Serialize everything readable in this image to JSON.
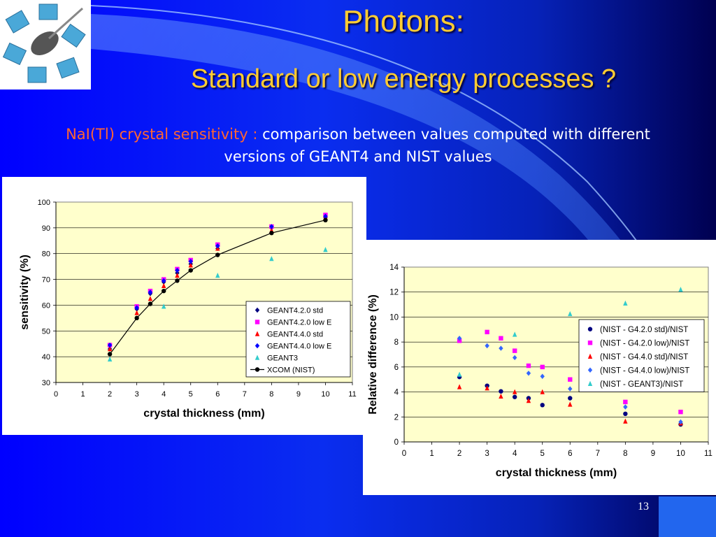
{
  "slide": {
    "title_line1": "Photons:",
    "title_line2": "Standard or low energy processes ?",
    "subtitle_highlight": "NaI(Tl) crystal sensitivity :",
    "subtitle_rest": " comparison between values computed with different",
    "subtitle_line2": "versions of GEANT4 and NIST values",
    "page_number": "13"
  },
  "chart_data": [
    {
      "type": "scatter",
      "ylabel": "sensitivity (%)",
      "xlabel": "crystal thickness (mm)",
      "xlim": [
        0,
        11
      ],
      "ylim": [
        30,
        100
      ],
      "xticks": [
        0,
        1,
        2,
        3,
        4,
        5,
        6,
        7,
        8,
        9,
        10,
        11
      ],
      "yticks": [
        30,
        40,
        50,
        60,
        70,
        80,
        90,
        100
      ],
      "grid": true,
      "legend_position": "right",
      "series": [
        {
          "name": "GEANT4.2.0 std",
          "marker": "diamond",
          "color": "#000080",
          "x": [
            2,
            3,
            3.5,
            4,
            4.5,
            5,
            6,
            8,
            10
          ],
          "y": [
            43,
            58.5,
            64.5,
            69,
            72.5,
            76,
            82,
            90,
            94
          ]
        },
        {
          "name": "GEANT4.2.0 low E",
          "marker": "square",
          "color": "#ff00ff",
          "x": [
            2,
            3,
            3.5,
            4,
            4.5,
            5,
            6,
            8,
            10
          ],
          "y": [
            44.5,
            59.5,
            65.5,
            70,
            74,
            77.5,
            83.5,
            90.5,
            95
          ]
        },
        {
          "name": "GEANT4.4.0 std",
          "marker": "triangle",
          "color": "#ff0000",
          "x": [
            2,
            3,
            3.5,
            4,
            4.5,
            5,
            6,
            8,
            10
          ],
          "y": [
            43,
            57,
            62.5,
            67.5,
            71.5,
            75.5,
            82,
            89,
            94
          ]
        },
        {
          "name": "GEANT4.4.0 low E",
          "marker": "diamond",
          "color": "#0000ff",
          "x": [
            2,
            3,
            3.5,
            4,
            4.5,
            5,
            6,
            8,
            10
          ],
          "y": [
            44.5,
            59,
            65,
            69.5,
            73.5,
            77,
            83,
            90.5,
            94.5
          ]
        },
        {
          "name": "GEANT3",
          "marker": "triangle",
          "color": "#33cccc",
          "x": [
            2,
            4,
            6,
            8,
            10
          ],
          "y": [
            39,
            59.5,
            71.5,
            78,
            81.5
          ]
        },
        {
          "name": "XCOM (NIST)",
          "marker": "circle",
          "color": "#000000",
          "line": true,
          "x": [
            2,
            3,
            3.5,
            4,
            4.5,
            5,
            6,
            8,
            10
          ],
          "y": [
            41,
            55,
            60.5,
            65.5,
            69.5,
            73.5,
            79.5,
            88,
            93
          ]
        }
      ]
    },
    {
      "type": "scatter",
      "ylabel": "Relative difference (%)",
      "xlabel": "crystal thickness (mm)",
      "xlim": [
        0,
        11
      ],
      "ylim": [
        0,
        14
      ],
      "xticks": [
        0,
        1,
        2,
        3,
        4,
        5,
        6,
        7,
        8,
        9,
        10,
        11
      ],
      "yticks": [
        0,
        2,
        4,
        6,
        8,
        10,
        12,
        14
      ],
      "grid": true,
      "legend_position": "right",
      "series": [
        {
          "name": "(NIST - G4.2.0 std)/NIST",
          "marker": "circle",
          "color": "#000080",
          "x": [
            2,
            3,
            3.5,
            4,
            4.5,
            5,
            6,
            8,
            10
          ],
          "y": [
            5.2,
            4.5,
            4.05,
            3.6,
            3.5,
            2.95,
            3.5,
            2.25,
            1.4
          ]
        },
        {
          "name": "(NIST - G4.2.0 low)/NIST",
          "marker": "square",
          "color": "#ff00ff",
          "x": [
            2,
            3,
            3.5,
            4,
            4.5,
            5,
            6,
            8,
            10
          ],
          "y": [
            8.1,
            8.8,
            8.3,
            7.3,
            6.1,
            6.0,
            5.0,
            3.2,
            2.4
          ]
        },
        {
          "name": "(NIST - G4.4.0 std)/NIST",
          "marker": "triangle",
          "color": "#ff0000",
          "x": [
            2,
            3,
            3.5,
            4,
            4.5,
            5,
            6,
            8,
            10
          ],
          "y": [
            4.4,
            4.3,
            3.65,
            4.0,
            3.3,
            4.0,
            3.0,
            1.65,
            1.5
          ]
        },
        {
          "name": "(NIST - G4.4.0 low)/NIST",
          "marker": "diamond",
          "color": "#3366ff",
          "x": [
            2,
            3,
            3.5,
            4,
            4.5,
            5,
            6,
            8,
            10
          ],
          "y": [
            8.3,
            7.7,
            7.5,
            6.75,
            5.5,
            5.25,
            4.25,
            2.8,
            1.6
          ]
        },
        {
          "name": "(NIST - GEANT3)/NIST",
          "marker": "triangle",
          "color": "#33cccc",
          "x": [
            2,
            4,
            6,
            8,
            10
          ],
          "y": [
            5.4,
            8.6,
            10.25,
            11.1,
            12.2
          ]
        }
      ]
    }
  ]
}
